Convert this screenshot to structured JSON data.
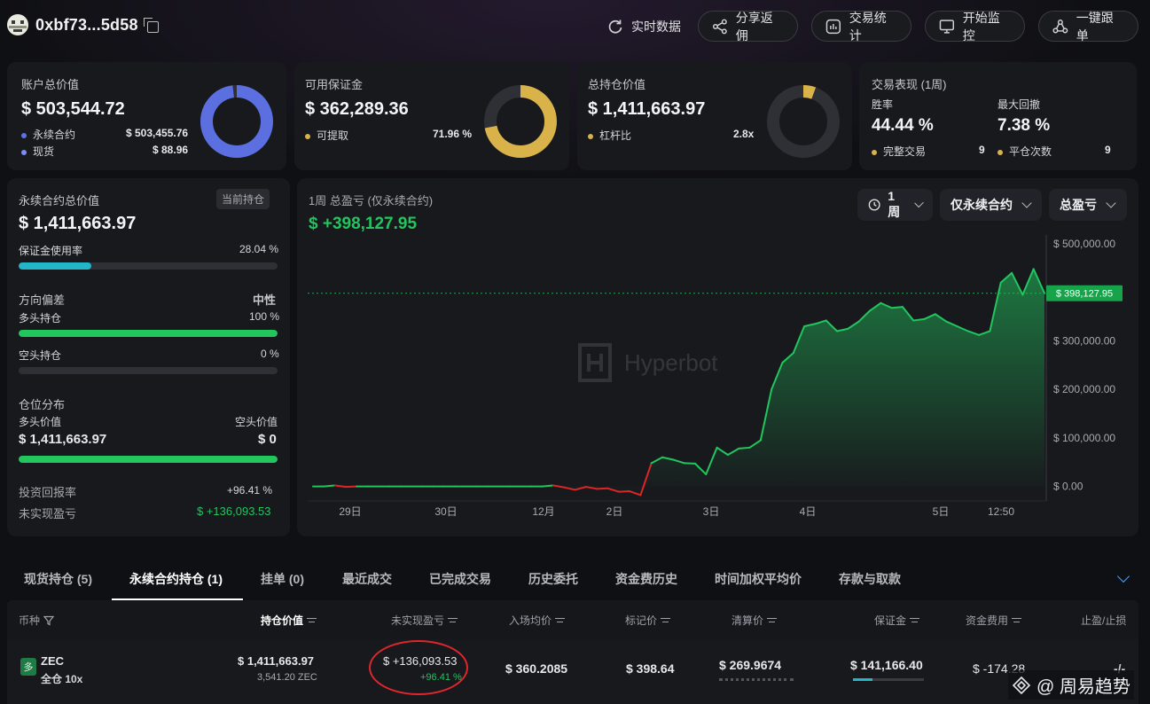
{
  "header": {
    "address": "0xbf73...5d58",
    "buttons": [
      "实时数据",
      "分享返佣",
      "交易统计",
      "开始监控",
      "一键跟单"
    ]
  },
  "summary": {
    "account": {
      "label": "账户总价值",
      "value": "$ 503,544.72",
      "rows": [
        {
          "label": "永续合约",
          "value": "$ 503,455.76",
          "color": "#5b73e8"
        },
        {
          "label": "现货",
          "value": "$ 88.96",
          "color": "#7c8cf0"
        }
      ],
      "ring_color": "#5b6fe0",
      "ring_fill": 0.98
    },
    "margin": {
      "label": "可用保证金",
      "value": "$ 362,289.36",
      "row_label": "可提取",
      "row_value": "71.96 %",
      "ring_color": "#d9b24a",
      "ring_fill": 0.7196
    },
    "position": {
      "label": "总持仓价值",
      "value": "$ 1,411,663.97",
      "row_label": "杠杆比",
      "row_value": "2.8x",
      "ring_color": "#d9b24a",
      "ring_fill": 0.056
    },
    "performance": {
      "label": "交易表现 (1周)",
      "win_label": "胜率",
      "win_value": "44.44 %",
      "dd_label": "最大回撤",
      "dd_value": "7.38 %",
      "trades_label": "完整交易",
      "trades_value": "9",
      "close_label": "平仓次数",
      "close_value": "9"
    }
  },
  "perp": {
    "title": "永续合约总价值",
    "badge": "当前持仓",
    "value": "$ 1,411,663.97",
    "margin_usage_label": "保证金使用率",
    "margin_usage_value": "28.04 %",
    "margin_usage": 0.2804,
    "bias_label": "方向偏差",
    "bias_value": "中性",
    "long_label": "多头持仓",
    "long_value": "100 %",
    "long": 1.0,
    "short_label": "空头持仓",
    "short_value": "0 %",
    "short": 0.0,
    "dist_label": "仓位分布",
    "long_val_label": "多头价值",
    "short_val_label": "空头价值",
    "long_val": "$ 1,411,663.97",
    "short_val": "$ 0",
    "long_share": 1.0,
    "roi_label": "投资回报率",
    "roi_value": "+96.41 %",
    "upnl_label": "未实现盈亏",
    "upnl_value": "$ +136,093.53"
  },
  "pnl_chart": {
    "title": "1周 总盈亏 (仅永续合约)",
    "value": "$ +398,127.95",
    "filters": [
      "1周",
      "仅永续合约",
      "总盈亏"
    ],
    "watermark": "Hyperbot"
  },
  "chart_data": {
    "type": "line",
    "title": "1周 总盈亏 (仅永续合约)",
    "x_ticks": [
      "29日",
      "30日",
      "12月",
      "2日",
      "3日",
      "4日",
      "5日",
      "12:50"
    ],
    "y_ticks": [
      "$ 500,000.00",
      "$ 400,000.00",
      "$ 300,000.00",
      "$ 200,000.00",
      "$ 100,000.00",
      "$ 0.00"
    ],
    "ylim": [
      -30000,
      500000
    ],
    "last_label": "$ 398,127.95",
    "last_value": 398127.95,
    "series": [
      {
        "values": [
          0,
          0,
          2000,
          -1000,
          0,
          0,
          0,
          0,
          0,
          0,
          0,
          0,
          0,
          0,
          0,
          0,
          0,
          0,
          0,
          0,
          0,
          0,
          2000,
          -2000,
          -7000,
          -1000,
          -5000,
          -4000,
          -11000,
          -10000,
          -18000,
          48000,
          60000,
          55000,
          48000,
          47000,
          25000,
          80000,
          65000,
          78000,
          80000,
          95000,
          200000,
          255000,
          275000,
          330000,
          335000,
          342000,
          320000,
          325000,
          340000,
          362000,
          378000,
          368000,
          370000,
          342000,
          345000,
          355000,
          340000,
          330000,
          320000,
          312000,
          320000,
          420000,
          440000,
          395000,
          448000,
          398127.95
        ]
      }
    ]
  },
  "tabs": [
    "现货持仓 (5)",
    "永续合约持仓 (1)",
    "挂单 (0)",
    "最近成交",
    "已完成交易",
    "历史委托",
    "资金费历史",
    "时间加权平均价",
    "存款与取款"
  ],
  "table": {
    "headers": [
      "币种",
      "持仓价值",
      "未实现盈亏",
      "入场均价",
      "标记价",
      "清算价",
      "保证金",
      "资金费用",
      "止盈/止损"
    ],
    "row": {
      "coin": "ZEC",
      "badge": "多",
      "mode": "全仓 10x",
      "value": "$ 1,411,663.97",
      "size": "3,541.20 ZEC",
      "upnl": "$ +136,093.53",
      "upnl_pct": "+96.41 %",
      "entry": "$ 360.2085",
      "mark": "$ 398.64",
      "liq": "$ 269.9674",
      "margin": "$ 141,166.40",
      "margin_fill": 0.28,
      "funding": "$ -174.28",
      "tpsl": "-/-"
    }
  },
  "watermark": "@ 周易趋势"
}
